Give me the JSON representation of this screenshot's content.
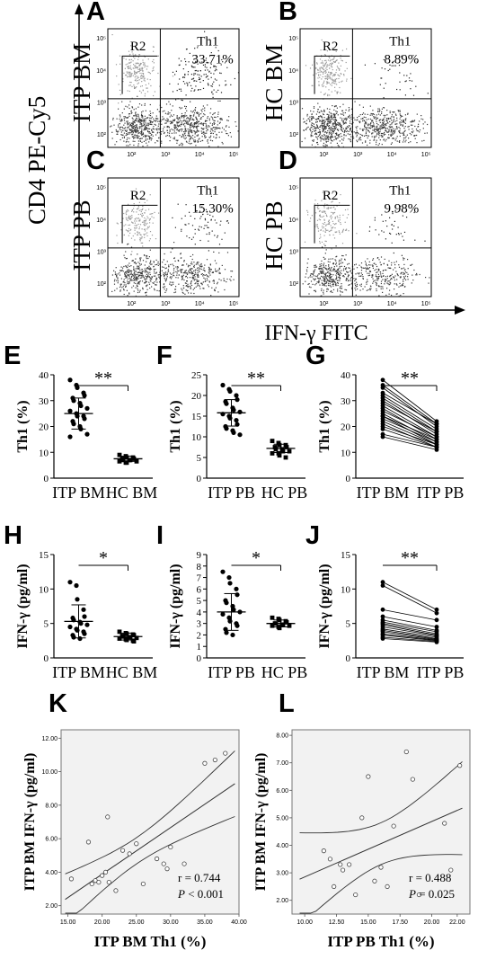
{
  "flow": {
    "y_axis_label": "CD4  PE-Cy5",
    "x_axis_label": "IFN-γ  FITC",
    "panels": [
      {
        "letter": "A",
        "row_label": "ITP BM",
        "gate": "R2",
        "th1_label": "Th1",
        "th1_value": "33.71%"
      },
      {
        "letter": "B",
        "row_label": "HC BM",
        "gate": "R2",
        "th1_label": "Th1",
        "th1_value": "8.89%"
      },
      {
        "letter": "C",
        "row_label": "ITP PB",
        "gate": "R2",
        "th1_label": "Th1",
        "th1_value": "15.30%"
      },
      {
        "letter": "D",
        "row_label": "HC PB",
        "gate": "R2",
        "th1_label": "Th1",
        "th1_value": "9.98%"
      }
    ],
    "x_ticks": [
      "10²",
      "10³",
      "10⁴",
      "10⁵"
    ],
    "y_ticks": [
      "10⁵",
      "10⁴",
      "10³",
      "10²"
    ]
  },
  "chart_data": [
    {
      "letter": "E",
      "type": "scatter",
      "ylabel": "Th1 (%)",
      "ylim": [
        0,
        40
      ],
      "yticks": [
        "0",
        "10",
        "20",
        "30",
        "40"
      ],
      "categories": [
        "ITP BM",
        "HC BM"
      ],
      "significance": "**",
      "groups": [
        {
          "values": [
            38,
            36,
            35,
            33,
            32,
            31,
            30,
            29,
            28,
            27,
            26,
            25,
            24,
            24,
            23,
            22,
            21,
            20,
            19,
            17,
            16
          ],
          "mean": 25,
          "sd": 6
        },
        {
          "values": [
            9,
            8.5,
            8,
            8,
            7.5,
            7.5,
            7,
            7,
            7,
            6.5,
            6.5,
            6,
            6
          ],
          "mean": 7.5,
          "sd": 1
        }
      ]
    },
    {
      "letter": "F",
      "type": "scatter",
      "ylabel": "Th1 (%)",
      "ylim": [
        0,
        25
      ],
      "yticks": [
        "0",
        "5",
        "10",
        "15",
        "20",
        "25"
      ],
      "categories": [
        "ITP PB",
        "HC PB"
      ],
      "significance": "**",
      "groups": [
        {
          "values": [
            22.5,
            21.5,
            21,
            20,
            19,
            18.5,
            18,
            17,
            16.5,
            16,
            15.5,
            15,
            14.5,
            14,
            13,
            12.5,
            12,
            11.5,
            11,
            10.5
          ],
          "mean": 15.8,
          "sd": 3.2
        },
        {
          "values": [
            9,
            8.5,
            8,
            8,
            7.5,
            7.5,
            7,
            7,
            6.5,
            6.5,
            6,
            6,
            5.5,
            5
          ],
          "mean": 7.2,
          "sd": 1
        }
      ]
    },
    {
      "letter": "G",
      "type": "line",
      "ylabel": "Th1 (%)",
      "ylim": [
        0,
        40
      ],
      "yticks": [
        "0",
        "10",
        "20",
        "30",
        "40"
      ],
      "categories": [
        "ITP BM",
        "ITP PB"
      ],
      "significance": "**",
      "pairs": [
        [
          38,
          22
        ],
        [
          36,
          21
        ],
        [
          35,
          20
        ],
        [
          33,
          21
        ],
        [
          32,
          19
        ],
        [
          31,
          18
        ],
        [
          30,
          17
        ],
        [
          29,
          18
        ],
        [
          28,
          16
        ],
        [
          27,
          15
        ],
        [
          26,
          16
        ],
        [
          25,
          14
        ],
        [
          24,
          15
        ],
        [
          24,
          13
        ],
        [
          23,
          14
        ],
        [
          22,
          13
        ],
        [
          21,
          12
        ],
        [
          20,
          13
        ],
        [
          19,
          12
        ],
        [
          17,
          12
        ],
        [
          16,
          11
        ]
      ]
    },
    {
      "letter": "H",
      "type": "scatter",
      "ylabel": "IFN-γ (pg/ml)",
      "ylim": [
        0,
        15
      ],
      "yticks": [
        "0",
        "5",
        "10",
        "15"
      ],
      "categories": [
        "ITP BM",
        "HC BM"
      ],
      "significance": "*",
      "groups": [
        {
          "values": [
            11,
            10.5,
            8.5,
            7,
            6,
            5.8,
            5.5,
            5.2,
            5,
            4.8,
            4.5,
            4.2,
            4,
            3.8,
            3.5,
            3.3,
            3,
            2.8
          ],
          "mean": 5.3,
          "sd": 2.4
        },
        {
          "values": [
            3.8,
            3.6,
            3.5,
            3.4,
            3.3,
            3.2,
            3.1,
            3,
            3,
            2.9,
            2.8,
            2.7,
            2.6,
            2.5,
            2.4
          ],
          "mean": 3.1,
          "sd": 0.5
        }
      ]
    },
    {
      "letter": "I",
      "type": "scatter",
      "ylabel": "IFN-γ (pg/ml)",
      "ylim": [
        0,
        9
      ],
      "yticks": [
        "0",
        "1",
        "2",
        "3",
        "4",
        "5",
        "6",
        "7",
        "8",
        "9"
      ],
      "categories": [
        "ITP PB",
        "HC PB"
      ],
      "significance": "*",
      "groups": [
        {
          "values": [
            7.5,
            7,
            6.5,
            6,
            5.5,
            5,
            4.8,
            4.5,
            4.2,
            4,
            3.8,
            3.5,
            3.2,
            3,
            2.8,
            2.5,
            2.2,
            2
          ],
          "mean": 4,
          "sd": 1.6
        },
        {
          "values": [
            3.5,
            3.4,
            3.3,
            3.2,
            3.1,
            3,
            3,
            2.9,
            2.9,
            2.8,
            2.8,
            2.7,
            2.6
          ],
          "mean": 3,
          "sd": 0.3
        }
      ]
    },
    {
      "letter": "J",
      "type": "line",
      "ylabel": "IFN-γ (pg/ml)",
      "ylim": [
        0,
        15
      ],
      "yticks": [
        "0",
        "5",
        "10",
        "15"
      ],
      "categories": [
        "ITP BM",
        "ITP PB"
      ],
      "significance": "**",
      "pairs": [
        [
          11,
          7
        ],
        [
          10.5,
          6.5
        ],
        [
          7,
          5.5
        ],
        [
          6,
          4.5
        ],
        [
          5.5,
          4
        ],
        [
          5.2,
          3.8
        ],
        [
          5,
          3.5
        ],
        [
          4.8,
          3.3
        ],
        [
          4.5,
          3.2
        ],
        [
          4.2,
          3
        ],
        [
          4,
          2.8
        ],
        [
          3.8,
          2.7
        ],
        [
          3.5,
          2.6
        ],
        [
          3.3,
          2.5
        ],
        [
          3,
          2.4
        ],
        [
          2.8,
          2.3
        ]
      ]
    },
    {
      "letter": "K",
      "type": "scatter",
      "xlabel": "ITP BM Th1 (%)",
      "ylabel": "ITP BM IFN-γ (pg/ml)",
      "xlim": [
        14,
        40
      ],
      "ylim": [
        1.5,
        12.5
      ],
      "xticks": [
        "15.00",
        "20.00",
        "25.00",
        "30.00",
        "35.00",
        "40.00"
      ],
      "yticks": [
        "2.00",
        "4.00",
        "6.00",
        "8.00",
        "10.00",
        "12.00"
      ],
      "r": "r = 0.744",
      "p": "P",
      "p_value": " < 0.001",
      "x": [
        15.5,
        18,
        18.5,
        19,
        19.5,
        20,
        20.5,
        20.8,
        21,
        22,
        23,
        24,
        25,
        26,
        28,
        29,
        29.5,
        30,
        32,
        35,
        36.5,
        38
      ],
      "y": [
        3.6,
        5.8,
        3.3,
        3.5,
        3.4,
        3.8,
        4.0,
        7.3,
        3.4,
        2.9,
        5.3,
        5.1,
        5.7,
        3.3,
        4.8,
        4.5,
        4.2,
        5.5,
        4.5,
        10.5,
        10.7,
        11.1
      ]
    },
    {
      "letter": "L",
      "type": "scatter",
      "xlabel": "ITP PB Th1 (%)",
      "ylabel": "ITP BM IFN-γ (pg/ml)",
      "xlim": [
        9,
        23
      ],
      "ylim": [
        1.5,
        8.2
      ],
      "xticks": [
        "10.00",
        "12.50",
        "15.00",
        "17.50",
        "20.00",
        "22.00"
      ],
      "yticks": [
        "2.00",
        "3.00",
        "4.00",
        "5.00",
        "6.00",
        "7.00",
        "8.00"
      ],
      "r": "r = 0.488",
      "p": "P",
      "p_value": " = 0.025",
      "x": [
        11.5,
        12,
        12.3,
        12.8,
        13,
        13.5,
        14,
        14.5,
        15,
        15.5,
        16,
        16.5,
        17,
        18,
        18.5,
        19,
        21,
        21.5,
        22.2
      ],
      "y": [
        3.8,
        3.5,
        2.5,
        3.3,
        3.1,
        3.3,
        2.2,
        5.0,
        6.5,
        2.7,
        3.2,
        2.5,
        4.7,
        7.4,
        6.4,
        2.2,
        4.8,
        3.1,
        6.9
      ]
    }
  ]
}
